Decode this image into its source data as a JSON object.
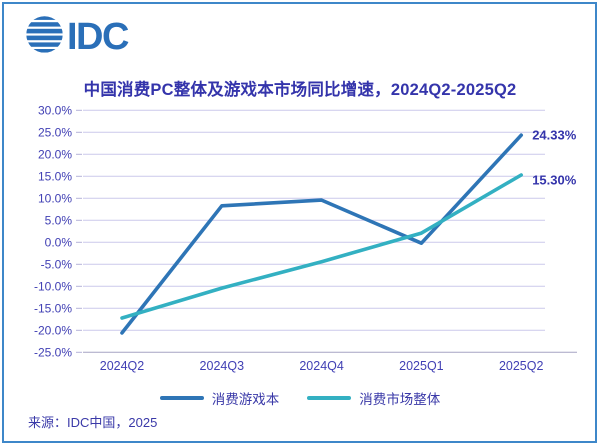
{
  "logo": {
    "text": "IDC",
    "icon": "striped-globe-icon",
    "color": "#2a6fb8"
  },
  "title": "中国消费PC整体及游戏本市场同比增速，2024Q2-2025Q2",
  "chart_data": {
    "type": "line",
    "title": "中国消费PC整体及游戏本市场同比增速，2024Q2-2025Q2",
    "categories": [
      "2024Q2",
      "2024Q3",
      "2024Q4",
      "2025Q1",
      "2025Q2"
    ],
    "series": [
      {
        "name": "消费游戏本",
        "color": "#2e75b6",
        "values": [
          -20.6,
          8.3,
          9.6,
          -0.2,
          24.33
        ],
        "end_label": "24.33%"
      },
      {
        "name": "消费市场整体",
        "color": "#33b0c2",
        "values": [
          -17.2,
          -10.4,
          -4.4,
          2.1,
          15.3
        ],
        "end_label": "15.30%"
      }
    ],
    "ylim": [
      -25,
      30
    ],
    "ytick_step": 5,
    "ytick_labels": [
      "30.0%",
      "25.0%",
      "20.0%",
      "15.0%",
      "10.0%",
      "5.0%",
      "0.0%",
      "-5.0%",
      "-10.0%",
      "-15.0%",
      "-20.0%",
      "-25.0%"
    ],
    "grid": true,
    "legend_position": "bottom"
  },
  "source": "来源：IDC中国，2025",
  "colors": {
    "border": "#3e87c9",
    "grid": "#ccc9ec",
    "axis_line": "#a5a3c4",
    "tick": "#b5b2d9",
    "title_text": "#3434ab",
    "label_text": "#4140b4",
    "data_label": "#3434ab"
  }
}
